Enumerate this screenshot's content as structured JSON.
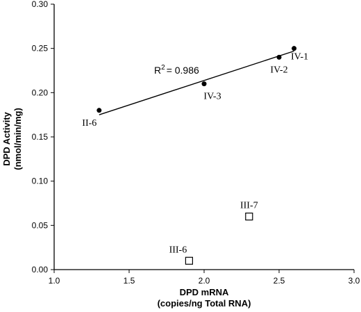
{
  "chart_data": {
    "type": "scatter",
    "x_label": [
      "DPD mRNA",
      "(copies/ng Total RNA)"
    ],
    "y_label": [
      "DPD Activity",
      "(nmol/min/mg)"
    ],
    "xlim": [
      1.0,
      3.0
    ],
    "xticks": [
      {
        "value": 1.0,
        "label": "1.0"
      },
      1.5,
      {
        "value": 2.0,
        "label": "2.0"
      },
      2.5,
      {
        "value": 3.0,
        "label": "3.0"
      }
    ],
    "ylim": [
      0.0,
      0.3
    ],
    "yticks": [
      {
        "value": 0.0,
        "label": "0.00"
      },
      0.05,
      {
        "value": 0.1,
        "label": "0.10"
      },
      0.15,
      {
        "value": 0.2,
        "label": "0.20"
      },
      0.25,
      {
        "value": 0.3,
        "label": "0.30"
      }
    ],
    "series": [
      {
        "marker": "filled-circle",
        "color": "#000000",
        "x": [
          1.3,
          2.0,
          2.5,
          2.6
        ],
        "values": [
          0.18,
          0.21,
          0.24,
          0.25
        ],
        "labels": [
          "II-6",
          "IV-3",
          "IV-2",
          "IV-1"
        ]
      },
      {
        "marker": "open-square",
        "color": "#000000",
        "x": [
          1.9,
          2.3
        ],
        "values": [
          0.01,
          0.06
        ],
        "labels": [
          "III-6",
          "III-7"
        ]
      }
    ],
    "trendline": {
      "x": [
        1.3,
        2.6
      ],
      "values": [
        0.175,
        0.247
      ],
      "annotation": {
        "base": "R",
        "sup": "2",
        "rest": "= 0.986"
      }
    }
  }
}
